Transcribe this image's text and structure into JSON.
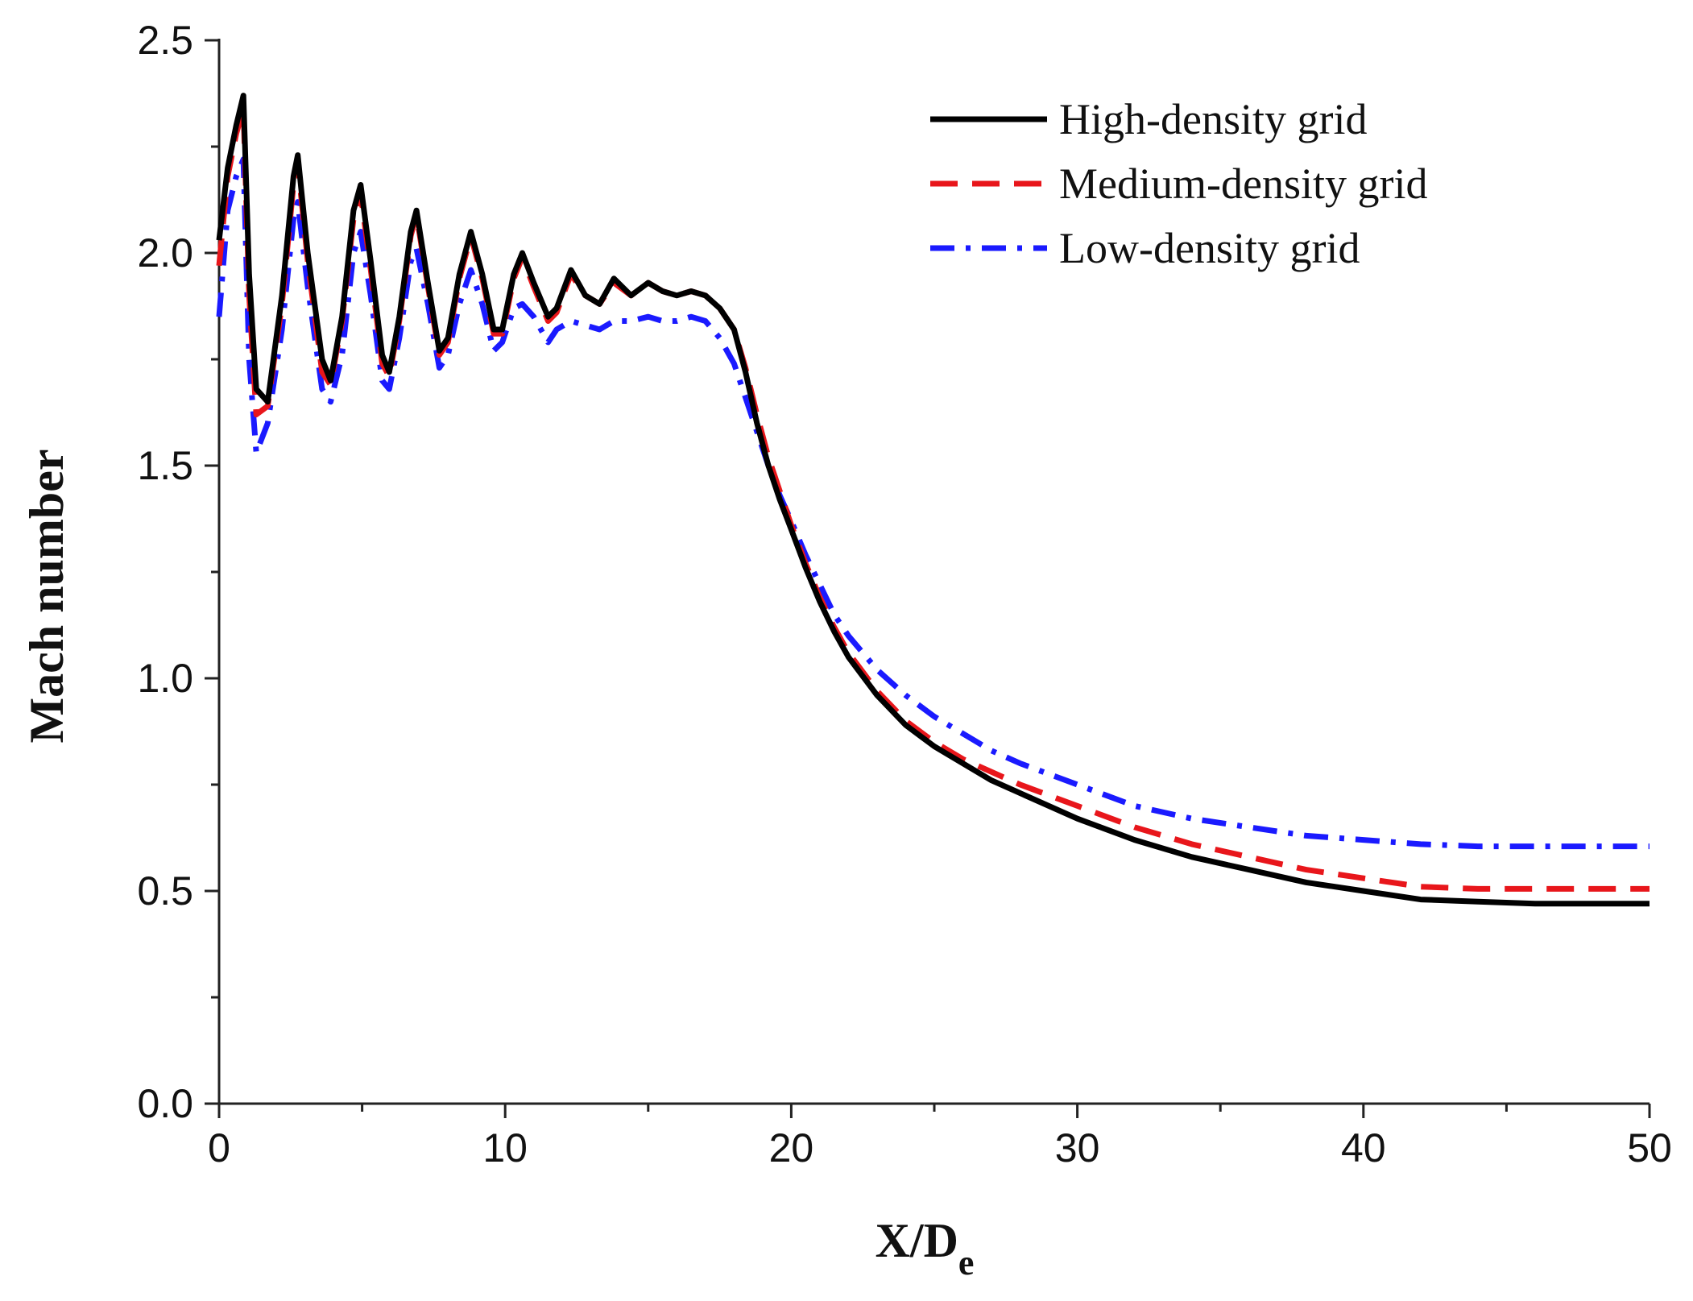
{
  "chart_data": {
    "type": "line",
    "title": "",
    "xlabel": "X/D",
    "xlabel_subscript": "e",
    "ylabel": "Mach number",
    "xlim": [
      0,
      50
    ],
    "ylim": [
      0,
      2.5
    ],
    "xticks": [
      0,
      10,
      20,
      30,
      40,
      50
    ],
    "xtick_labels": [
      "0",
      "10",
      "20",
      "30",
      "40",
      "50"
    ],
    "yticks": [
      0,
      0.5,
      1.0,
      1.5,
      2.0,
      2.5
    ],
    "ytick_labels": [
      "0.0",
      "0.5",
      "1.0",
      "1.5",
      "2.0",
      "2.5"
    ],
    "grid": false,
    "legend_position": "top-right",
    "series": [
      {
        "name": "High-density grid",
        "color": "#000000",
        "dash": "solid",
        "x": [
          0,
          0.3,
          0.6,
          0.85,
          1.05,
          1.3,
          1.7,
          2.2,
          2.6,
          2.75,
          3.1,
          3.6,
          3.9,
          4.3,
          4.7,
          4.95,
          5.3,
          5.7,
          5.95,
          6.3,
          6.7,
          6.9,
          7.3,
          7.7,
          8.0,
          8.4,
          8.8,
          9.2,
          9.6,
          9.9,
          10.3,
          10.6,
          11.0,
          11.5,
          11.8,
          12.3,
          12.8,
          13.3,
          13.8,
          14.4,
          15.0,
          15.5,
          16.0,
          16.5,
          17.0,
          17.5,
          18.0,
          18.4,
          18.8,
          19.2,
          19.6,
          20.0,
          20.5,
          21.0,
          21.5,
          22.0,
          23.0,
          24.0,
          25.0,
          26.0,
          27.0,
          28.0,
          30.0,
          32.0,
          34.0,
          36.0,
          38.0,
          40.0,
          42.0,
          44.0,
          46.0,
          48.0,
          50.0
        ],
        "y": [
          2.03,
          2.2,
          2.3,
          2.37,
          1.95,
          1.68,
          1.65,
          1.9,
          2.18,
          2.23,
          2.0,
          1.75,
          1.7,
          1.85,
          2.1,
          2.16,
          1.98,
          1.76,
          1.72,
          1.85,
          2.05,
          2.1,
          1.93,
          1.77,
          1.8,
          1.95,
          2.05,
          1.95,
          1.82,
          1.82,
          1.95,
          2.0,
          1.93,
          1.85,
          1.87,
          1.96,
          1.9,
          1.88,
          1.94,
          1.9,
          1.93,
          1.91,
          1.9,
          1.91,
          1.9,
          1.87,
          1.82,
          1.72,
          1.6,
          1.5,
          1.42,
          1.35,
          1.26,
          1.18,
          1.11,
          1.05,
          0.96,
          0.89,
          0.84,
          0.8,
          0.76,
          0.73,
          0.67,
          0.62,
          0.58,
          0.55,
          0.52,
          0.5,
          0.48,
          0.475,
          0.47,
          0.47,
          0.47
        ]
      },
      {
        "name": "Medium-density grid",
        "color": "#e8161b",
        "dash": "dashed",
        "x": [
          0,
          0.3,
          0.6,
          0.85,
          1.05,
          1.3,
          1.7,
          2.2,
          2.6,
          2.75,
          3.1,
          3.6,
          3.9,
          4.3,
          4.7,
          4.95,
          5.3,
          5.7,
          5.95,
          6.3,
          6.7,
          6.9,
          7.3,
          7.7,
          8.0,
          8.4,
          8.8,
          9.2,
          9.6,
          9.9,
          10.3,
          10.6,
          11.0,
          11.5,
          11.8,
          12.3,
          12.8,
          13.3,
          13.8,
          14.4,
          15.0,
          15.5,
          16.0,
          16.5,
          17.0,
          17.5,
          18.0,
          18.4,
          18.8,
          19.2,
          19.6,
          20.0,
          20.5,
          21.0,
          21.5,
          22.0,
          23.0,
          24.0,
          25.0,
          26.0,
          27.0,
          28.0,
          30.0,
          32.0,
          34.0,
          36.0,
          38.0,
          40.0,
          42.0,
          44.0,
          46.0,
          48.0,
          50.0
        ],
        "y": [
          1.97,
          2.18,
          2.28,
          2.34,
          1.9,
          1.62,
          1.64,
          1.88,
          2.16,
          2.21,
          1.98,
          1.72,
          1.69,
          1.84,
          2.08,
          2.14,
          1.96,
          1.74,
          1.71,
          1.84,
          2.04,
          2.09,
          1.92,
          1.76,
          1.79,
          1.94,
          2.04,
          1.94,
          1.81,
          1.81,
          1.94,
          1.99,
          1.92,
          1.84,
          1.86,
          1.95,
          1.9,
          1.88,
          1.93,
          1.9,
          1.93,
          1.91,
          1.9,
          1.91,
          1.9,
          1.87,
          1.82,
          1.73,
          1.62,
          1.52,
          1.44,
          1.36,
          1.27,
          1.19,
          1.12,
          1.06,
          0.97,
          0.9,
          0.85,
          0.81,
          0.78,
          0.75,
          0.7,
          0.65,
          0.61,
          0.58,
          0.55,
          0.53,
          0.51,
          0.505,
          0.505,
          0.505,
          0.505
        ]
      },
      {
        "name": "Low-density grid",
        "color": "#1a1aff",
        "dash": "dashdot",
        "x": [
          0,
          0.3,
          0.6,
          0.85,
          1.05,
          1.3,
          1.7,
          2.2,
          2.6,
          2.75,
          3.1,
          3.6,
          3.9,
          4.3,
          4.7,
          4.95,
          5.3,
          5.7,
          5.95,
          6.3,
          6.7,
          6.9,
          7.3,
          7.7,
          8.0,
          8.4,
          8.8,
          9.2,
          9.6,
          9.9,
          10.3,
          10.6,
          11.0,
          11.5,
          11.8,
          12.3,
          12.8,
          13.3,
          13.8,
          14.4,
          15.0,
          15.5,
          16.0,
          16.5,
          17.0,
          17.5,
          18.0,
          18.4,
          18.8,
          19.2,
          19.6,
          20.0,
          20.5,
          21.0,
          21.5,
          22.0,
          23.0,
          24.0,
          25.0,
          26.0,
          27.0,
          28.0,
          30.0,
          32.0,
          34.0,
          36.0,
          38.0,
          40.0,
          42.0,
          44.0,
          46.0,
          48.0,
          50.0
        ],
        "y": [
          1.85,
          2.1,
          2.18,
          2.22,
          1.75,
          1.53,
          1.6,
          1.82,
          2.08,
          2.12,
          1.92,
          1.68,
          1.65,
          1.76,
          2.0,
          2.05,
          1.9,
          1.7,
          1.68,
          1.8,
          1.98,
          2.01,
          1.88,
          1.73,
          1.76,
          1.88,
          1.96,
          1.88,
          1.77,
          1.79,
          1.87,
          1.88,
          1.85,
          1.79,
          1.82,
          1.84,
          1.83,
          1.82,
          1.84,
          1.84,
          1.85,
          1.84,
          1.84,
          1.85,
          1.84,
          1.8,
          1.74,
          1.66,
          1.58,
          1.5,
          1.43,
          1.37,
          1.29,
          1.22,
          1.15,
          1.1,
          1.02,
          0.96,
          0.91,
          0.87,
          0.83,
          0.8,
          0.75,
          0.7,
          0.67,
          0.65,
          0.63,
          0.62,
          0.61,
          0.605,
          0.605,
          0.605,
          0.605
        ]
      }
    ]
  }
}
